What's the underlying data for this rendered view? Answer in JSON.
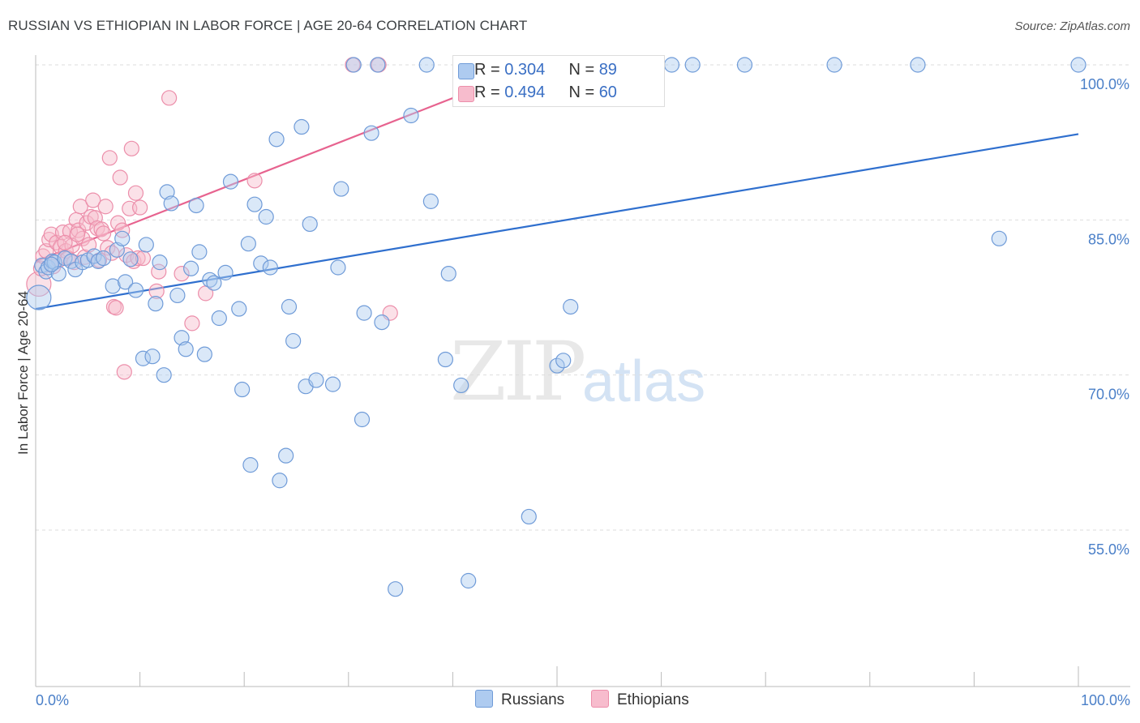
{
  "header": {
    "title": "RUSSIAN VS ETHIOPIAN IN LABOR FORCE | AGE 20-64 CORRELATION CHART",
    "source": "Source: ZipAtlas.com"
  },
  "legend": {
    "russians": {
      "r_label": "R = ",
      "r_value": "0.304",
      "n_label": "N = ",
      "n_value": "89"
    },
    "ethiopians": {
      "r_label": "R = ",
      "r_value": "0.494",
      "n_label": "N = ",
      "n_value": "60"
    }
  },
  "bottom_legend": {
    "russians": "Russians",
    "ethiopians": "Ethiopians"
  },
  "watermark": {
    "zip": "ZIP",
    "atlas": "atlas"
  },
  "colors": {
    "russians_fill": "#aecbf0",
    "russians_stroke": "#6f9bd8",
    "russians_line": "#2f6fce",
    "ethiopians_fill": "#f7bccd",
    "ethiopians_stroke": "#ec8eaa",
    "ethiopians_line": "#e7638f",
    "axis_text": "#4a7fc8",
    "grid": "#dddddd"
  },
  "chart_data": {
    "type": "scatter",
    "title": "RUSSIAN VS ETHIOPIAN IN LABOR FORCE | AGE 20-64 CORRELATION CHART",
    "xlabel": "",
    "ylabel": "In Labor Force | Age 20-64",
    "xlim": [
      0,
      100
    ],
    "ylim": [
      40,
      101.5
    ],
    "x_tick_labels": [
      "0.0%",
      "100.0%"
    ],
    "y_ticks": [
      55,
      70,
      85,
      100
    ],
    "y_tick_labels": [
      "55.0%",
      "70.0%",
      "85.0%",
      "100.0%"
    ],
    "grid": true,
    "series": [
      {
        "name": "Russians",
        "trend": {
          "x": [
            0,
            100
          ],
          "y": [
            76.4,
            93.3
          ]
        },
        "points": [
          [
            0.3,
            77.5
          ],
          [
            0.6,
            80.6
          ],
          [
            1.0,
            80.0
          ],
          [
            1.2,
            80.4
          ],
          [
            1.6,
            81.0
          ],
          [
            1.8,
            80.9
          ],
          [
            2.2,
            79.8
          ],
          [
            2.8,
            81.3
          ],
          [
            3.4,
            81.0
          ],
          [
            3.8,
            80.2
          ],
          [
            4.5,
            80.9
          ],
          [
            5.0,
            81.1
          ],
          [
            5.6,
            81.5
          ],
          [
            6.0,
            81.0
          ],
          [
            6.5,
            81.3
          ],
          [
            7.4,
            78.6
          ],
          [
            7.8,
            82.1
          ],
          [
            8.3,
            83.2
          ],
          [
            8.6,
            79.0
          ],
          [
            9.1,
            81.2
          ],
          [
            9.6,
            78.2
          ],
          [
            10.3,
            71.6
          ],
          [
            10.6,
            82.6
          ],
          [
            11.2,
            71.8
          ],
          [
            11.5,
            76.9
          ],
          [
            11.9,
            80.9
          ],
          [
            12.3,
            70.0
          ],
          [
            12.6,
            87.7
          ],
          [
            13.0,
            86.6
          ],
          [
            13.6,
            77.7
          ],
          [
            14.0,
            73.6
          ],
          [
            14.4,
            72.5
          ],
          [
            14.9,
            80.3
          ],
          [
            15.4,
            86.4
          ],
          [
            15.7,
            81.9
          ],
          [
            16.2,
            72.0
          ],
          [
            16.7,
            79.2
          ],
          [
            17.1,
            78.9
          ],
          [
            17.6,
            75.5
          ],
          [
            18.2,
            79.9
          ],
          [
            18.7,
            88.7
          ],
          [
            19.5,
            76.4
          ],
          [
            19.8,
            68.6
          ],
          [
            20.4,
            82.7
          ],
          [
            20.6,
            61.3
          ],
          [
            21.0,
            86.5
          ],
          [
            21.6,
            80.8
          ],
          [
            22.1,
            85.3
          ],
          [
            22.5,
            80.4
          ],
          [
            23.1,
            92.8
          ],
          [
            23.4,
            59.8
          ],
          [
            24.0,
            62.2
          ],
          [
            24.3,
            76.6
          ],
          [
            24.7,
            73.3
          ],
          [
            25.5,
            94.0
          ],
          [
            25.9,
            68.9
          ],
          [
            26.3,
            84.6
          ],
          [
            26.9,
            69.5
          ],
          [
            28.5,
            69.1
          ],
          [
            29.0,
            80.4
          ],
          [
            29.3,
            88.0
          ],
          [
            30.5,
            100
          ],
          [
            31.3,
            65.7
          ],
          [
            31.5,
            76.0
          ],
          [
            32.2,
            93.4
          ],
          [
            32.8,
            100
          ],
          [
            33.2,
            75.1
          ],
          [
            34.5,
            49.3
          ],
          [
            36.0,
            95.1
          ],
          [
            37.5,
            100
          ],
          [
            37.9,
            86.8
          ],
          [
            39.3,
            71.5
          ],
          [
            39.6,
            79.8
          ],
          [
            40.8,
            69.0
          ],
          [
            41.5,
            50.1
          ],
          [
            44.8,
            100
          ],
          [
            47.3,
            56.3
          ],
          [
            50.0,
            70.9
          ],
          [
            50.6,
            71.4
          ],
          [
            51.3,
            76.6
          ],
          [
            55.6,
            100
          ],
          [
            61.0,
            100
          ],
          [
            63.0,
            100
          ],
          [
            68.0,
            100
          ],
          [
            76.6,
            100
          ],
          [
            84.6,
            100
          ],
          [
            92.4,
            83.2
          ],
          [
            100.0,
            100
          ],
          [
            1.5,
            80.7
          ]
        ]
      },
      {
        "name": "Ethiopians",
        "trend": {
          "x": [
            0,
            40.8
          ],
          "y": [
            81.0,
            97.1
          ]
        },
        "points": [
          [
            0.3,
            78.8
          ],
          [
            0.5,
            80.3
          ],
          [
            0.7,
            81.5
          ],
          [
            1.0,
            82.0
          ],
          [
            1.3,
            83.1
          ],
          [
            1.5,
            83.6
          ],
          [
            1.7,
            80.5
          ],
          [
            2.0,
            82.8
          ],
          [
            2.2,
            81.1
          ],
          [
            2.4,
            82.4
          ],
          [
            2.6,
            83.8
          ],
          [
            2.9,
            82.0
          ],
          [
            3.1,
            81.3
          ],
          [
            3.3,
            83.9
          ],
          [
            3.5,
            82.5
          ],
          [
            3.7,
            80.9
          ],
          [
            3.9,
            85.0
          ],
          [
            4.1,
            84.0
          ],
          [
            4.3,
            86.3
          ],
          [
            4.5,
            83.2
          ],
          [
            4.7,
            81.4
          ],
          [
            4.9,
            84.7
          ],
          [
            5.1,
            82.6
          ],
          [
            5.3,
            85.3
          ],
          [
            5.5,
            86.9
          ],
          [
            5.7,
            85.2
          ],
          [
            5.9,
            84.2
          ],
          [
            6.1,
            81.1
          ],
          [
            6.3,
            84.1
          ],
          [
            6.5,
            83.7
          ],
          [
            6.7,
            86.3
          ],
          [
            6.9,
            82.3
          ],
          [
            7.1,
            91.0
          ],
          [
            7.3,
            81.8
          ],
          [
            7.5,
            76.6
          ],
          [
            7.7,
            76.5
          ],
          [
            7.9,
            84.7
          ],
          [
            8.1,
            89.1
          ],
          [
            8.3,
            84.0
          ],
          [
            8.5,
            70.3
          ],
          [
            8.7,
            81.6
          ],
          [
            9.0,
            86.1
          ],
          [
            9.2,
            91.9
          ],
          [
            9.4,
            81.0
          ],
          [
            9.6,
            87.6
          ],
          [
            9.8,
            81.3
          ],
          [
            10.0,
            86.2
          ],
          [
            10.3,
            81.3
          ],
          [
            11.6,
            78.1
          ],
          [
            11.8,
            80.0
          ],
          [
            12.8,
            96.8
          ],
          [
            14.0,
            79.8
          ],
          [
            15.0,
            75.0
          ],
          [
            16.3,
            77.9
          ],
          [
            21.0,
            88.8
          ],
          [
            30.4,
            100
          ],
          [
            32.9,
            100
          ],
          [
            34.0,
            76.0
          ],
          [
            2.8,
            82.8
          ],
          [
            4.0,
            83.6
          ]
        ]
      }
    ]
  }
}
